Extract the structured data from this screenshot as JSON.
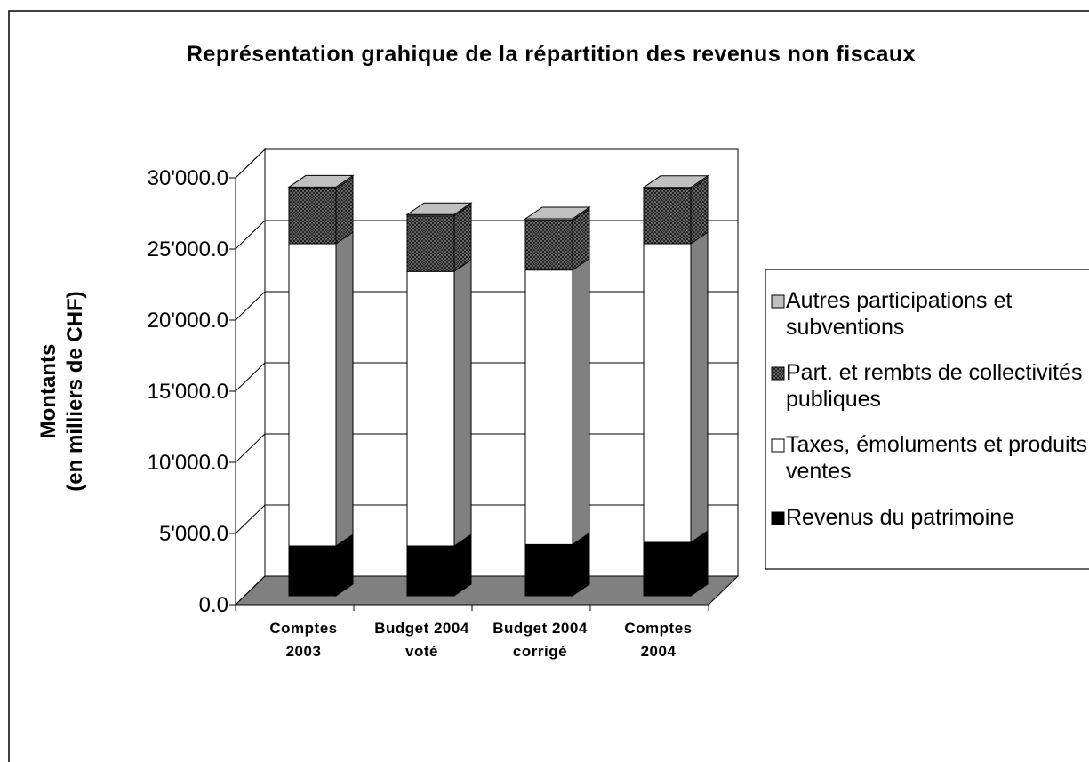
{
  "chart_data": {
    "type": "bar3d_stacked",
    "title": "Représentation grahique de la répartition des revenus non fiscaux",
    "ylabel": [
      "Montants",
      "(en milliers de CHF)"
    ],
    "categories": [
      "Comptes 2003",
      "Budget 2004 voté",
      "Budget 2004 corrigé",
      "Comptes 2004"
    ],
    "series": [
      {
        "name": "Revenus du patrimoine",
        "color": "#000000",
        "values": [
          3500,
          3500,
          3600,
          3750
        ]
      },
      {
        "name": "Taxes, émoluments et produits ventes",
        "color": "#ffffff",
        "values": [
          21250,
          19300,
          19300,
          21000
        ]
      },
      {
        "name": "Part. et rembts de collectivités publiques",
        "color": "#555555",
        "values": [
          3875,
          3900,
          3500,
          3850
        ]
      },
      {
        "name": "Autres participations et subventions",
        "color": "#c0c0c0",
        "values": [
          100,
          100,
          100,
          100
        ]
      }
    ],
    "ylim": [
      0,
      30000
    ],
    "yticks": [
      {
        "value": 0,
        "label": "0.0"
      },
      {
        "value": 5000,
        "label": "5'000.0"
      },
      {
        "value": 10000,
        "label": "10'000.0"
      },
      {
        "value": 15000,
        "label": "15'000.0"
      },
      {
        "value": 20000,
        "label": "20'000.0"
      },
      {
        "value": 25000,
        "label": "25'000.0"
      },
      {
        "value": 30000,
        "label": "30'000.0"
      }
    ],
    "grid": true,
    "legend": "right"
  }
}
